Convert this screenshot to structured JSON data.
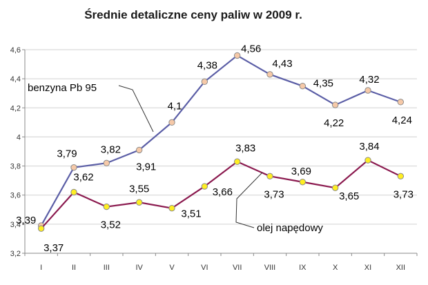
{
  "chart_data": {
    "type": "line",
    "title": "Średnie detaliczne ceny paliw w 2009 r.",
    "xlabel": "",
    "ylabel": "",
    "categories": [
      "I",
      "II",
      "III",
      "IV",
      "V",
      "VI",
      "VII",
      "VIII",
      "IX",
      "X",
      "XI",
      "XII"
    ],
    "ylim": [
      3.2,
      4.6
    ],
    "yticks": [
      "3,2",
      "3,4",
      "3,6",
      "3,8",
      "4",
      "4,2",
      "4,4",
      "4,6"
    ],
    "grid": true,
    "legend": "inline labels with leader lines",
    "series": [
      {
        "name": "benzyna Pb 95",
        "values": [
          3.39,
          3.79,
          3.82,
          3.91,
          4.1,
          4.38,
          4.56,
          4.43,
          4.35,
          4.22,
          4.32,
          4.24
        ],
        "labels": [
          "3,39",
          "3,79",
          "3,82",
          "3,91",
          "4,1",
          "4,38",
          "4,56",
          "4,43",
          "4,35",
          "4,22",
          "4,32",
          "4,24"
        ],
        "line_color": "#5b5ea6",
        "marker_color": "#f6c9a8"
      },
      {
        "name": "olej napędowy",
        "values": [
          3.37,
          3.62,
          3.52,
          3.55,
          3.51,
          3.66,
          3.83,
          3.73,
          3.69,
          3.65,
          3.84,
          3.73
        ],
        "labels": [
          "3,37",
          "3,62",
          "3,52",
          "3,55",
          "3,51",
          "3,66",
          "3,83",
          "3,73",
          "3,69",
          "3,65",
          "3,84",
          "3,73"
        ],
        "line_color": "#8b1a4f",
        "marker_color": "#ffee22"
      }
    ]
  }
}
